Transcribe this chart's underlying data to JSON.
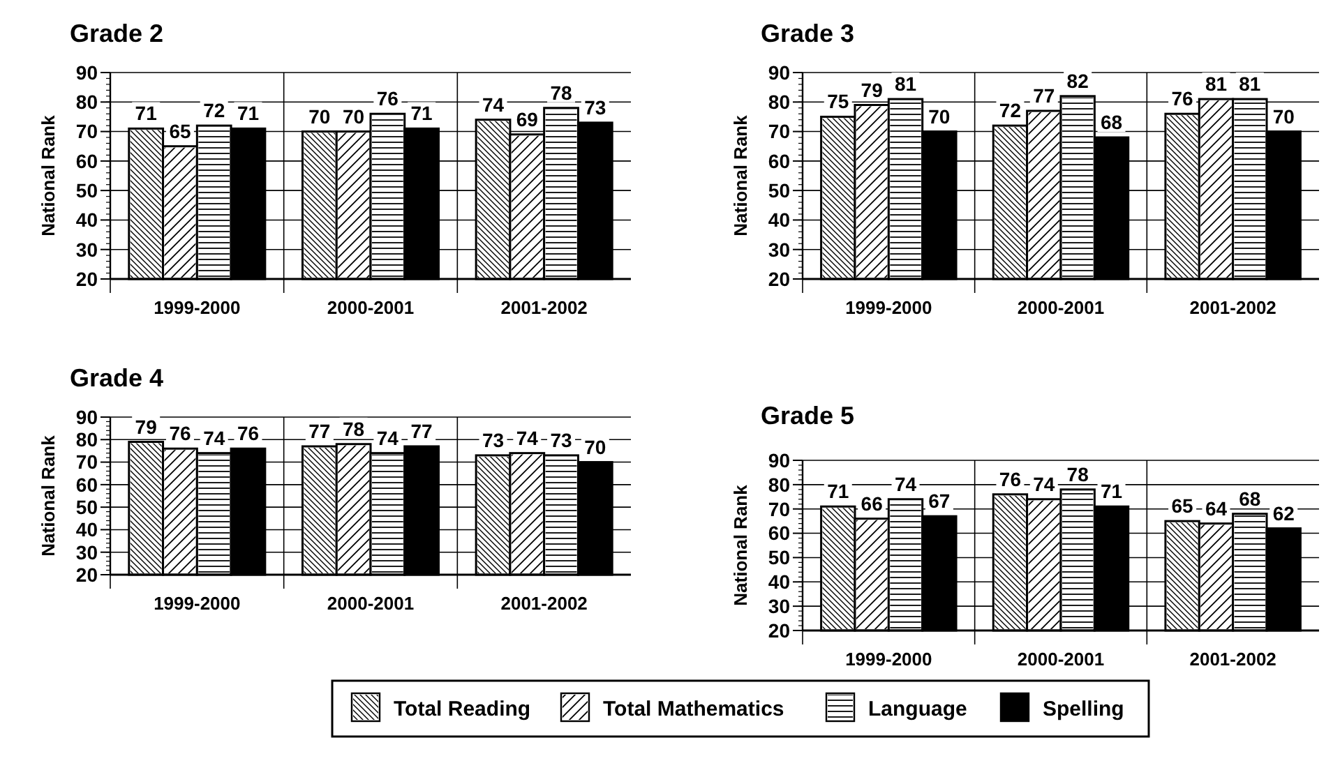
{
  "chart_data": [
    {
      "type": "bar",
      "title": "Grade 2",
      "ylabel": "National Rank",
      "categories": [
        "1999-2000",
        "2000-2001",
        "2001-2002"
      ],
      "ylim": [
        20,
        90
      ],
      "yticks": [
        20,
        30,
        40,
        50,
        60,
        70,
        80,
        90
      ],
      "grid": "y",
      "data_labels": true,
      "legend": "bottom",
      "series": [
        {
          "name": "Total Reading",
          "color": "#ffffff",
          "values": [
            71,
            70,
            74
          ]
        },
        {
          "name": "Total Mathematics",
          "color": "#ffffff",
          "values": [
            65,
            70,
            69
          ]
        },
        {
          "name": "Language",
          "color": "#ffffff",
          "values": [
            72,
            76,
            78
          ]
        },
        {
          "name": "Spelling",
          "color": "#000000",
          "values": [
            71,
            71,
            73
          ]
        }
      ]
    },
    {
      "type": "bar",
      "title": "Grade 3",
      "ylabel": "National Rank",
      "categories": [
        "1999-2000",
        "2000-2001",
        "2001-2002"
      ],
      "ylim": [
        20,
        90
      ],
      "yticks": [
        20,
        30,
        40,
        50,
        60,
        70,
        80,
        90
      ],
      "grid": "y",
      "data_labels": true,
      "series": [
        {
          "color": "#ffffff",
          "values": [
            75,
            72,
            76
          ]
        },
        {
          "color": "#ffffff",
          "values": [
            79,
            77,
            81
          ]
        },
        {
          "color": "#ffffff",
          "values": [
            81,
            82,
            81
          ]
        },
        {
          "color": "#000000",
          "values": [
            70,
            68,
            70
          ]
        }
      ]
    },
    {
      "type": "bar",
      "title": "Grade 4",
      "ylabel": "National Rank",
      "categories": [
        "1999-2000",
        "2000-2001",
        "2001-2002"
      ],
      "ylim": [
        20,
        90
      ],
      "yticks": [
        20,
        30,
        40,
        50,
        60,
        70,
        80,
        90
      ],
      "grid": "y",
      "data_labels": true,
      "series": [
        {
          "color": "#ffffff",
          "values": [
            79,
            77,
            73
          ]
        },
        {
          "color": "#ffffff",
          "values": [
            76,
            78,
            74
          ]
        },
        {
          "color": "#ffffff",
          "values": [
            74,
            74,
            73
          ]
        },
        {
          "color": "#000000",
          "values": [
            76,
            77,
            70
          ]
        }
      ]
    },
    {
      "type": "bar",
      "title": "Grade 5",
      "ylabel": "National Rank",
      "categories": [
        "1999-2000",
        "2000-2001",
        "2001-2002"
      ],
      "ylim": [
        20,
        90
      ],
      "yticks": [
        20,
        30,
        40,
        50,
        60,
        70,
        80,
        90
      ],
      "grid": "y",
      "data_labels": true,
      "series": [
        {
          "color": "#ffffff",
          "values": [
            71,
            76,
            65
          ]
        },
        {
          "color": "#ffffff",
          "values": [
            66,
            74,
            64
          ]
        },
        {
          "color": "#ffffff",
          "values": [
            74,
            78,
            68
          ]
        },
        {
          "color": "#000000",
          "values": [
            67,
            71,
            62
          ]
        }
      ]
    }
  ]
}
